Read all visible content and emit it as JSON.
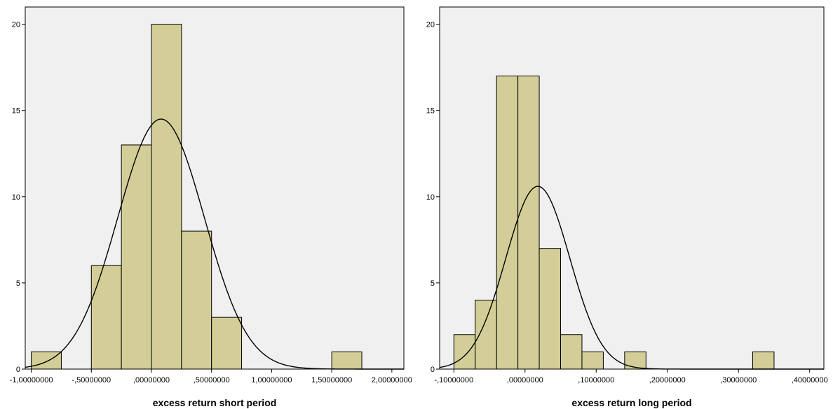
{
  "colors": {
    "plot_background": "#f0f0f0",
    "bar_fill": "#d3ce97",
    "bar_stroke": "#000000",
    "curve": "#000000",
    "axis": "#000000"
  },
  "chart_data": [
    {
      "type": "bar",
      "subtype": "histogram with normal curve",
      "title": "",
      "xlabel": "excess return short period",
      "ylabel": "",
      "grid": false,
      "xlim": [
        -1.05,
        2.1
      ],
      "ylim": [
        0,
        21
      ],
      "x_ticks": [
        {
          "value": -1.0,
          "label": "-1,00000000"
        },
        {
          "value": -0.5,
          "label": "-,50000000"
        },
        {
          "value": 0.0,
          "label": ",00000000"
        },
        {
          "value": 0.5,
          "label": ",50000000"
        },
        {
          "value": 1.0,
          "label": "1,00000000"
        },
        {
          "value": 1.5,
          "label": "1,50000000"
        },
        {
          "value": 2.0,
          "label": "2,00000000"
        }
      ],
      "y_ticks": [
        {
          "value": 0,
          "label": "0"
        },
        {
          "value": 5,
          "label": "5"
        },
        {
          "value": 10,
          "label": "10"
        },
        {
          "value": 15,
          "label": "15"
        },
        {
          "value": 20,
          "label": "20"
        }
      ],
      "bins": [
        {
          "start": -1.0,
          "end": -0.75,
          "count": 1
        },
        {
          "start": -0.5,
          "end": -0.25,
          "count": 6
        },
        {
          "start": -0.25,
          "end": 0.0,
          "count": 13
        },
        {
          "start": 0.0,
          "end": 0.25,
          "count": 20
        },
        {
          "start": 0.25,
          "end": 0.5,
          "count": 8
        },
        {
          "start": 0.5,
          "end": 0.75,
          "count": 3
        },
        {
          "start": 1.5,
          "end": 1.75,
          "count": 1
        }
      ],
      "normal_curve": {
        "mean": 0.08,
        "std": 0.36,
        "peak": 14.5
      }
    },
    {
      "type": "bar",
      "subtype": "histogram with normal curve",
      "title": "",
      "xlabel": "excess return long period",
      "ylabel": "",
      "grid": false,
      "xlim": [
        -0.12,
        0.42
      ],
      "ylim": [
        0,
        21
      ],
      "x_ticks": [
        {
          "value": -0.1,
          "label": "-,10000000"
        },
        {
          "value": 0.0,
          "label": ",00000000"
        },
        {
          "value": 0.1,
          "label": ",10000000"
        },
        {
          "value": 0.2,
          "label": ",20000000"
        },
        {
          "value": 0.3,
          "label": ",30000000"
        },
        {
          "value": 0.4,
          "label": ",40000000"
        }
      ],
      "y_ticks": [
        {
          "value": 0,
          "label": "0"
        },
        {
          "value": 5,
          "label": "5"
        },
        {
          "value": 10,
          "label": "10"
        },
        {
          "value": 15,
          "label": "15"
        },
        {
          "value": 20,
          "label": "20"
        }
      ],
      "bins": [
        {
          "start": -0.1,
          "end": -0.07,
          "count": 2
        },
        {
          "start": -0.07,
          "end": -0.04,
          "count": 4
        },
        {
          "start": -0.04,
          "end": -0.01,
          "count": 17
        },
        {
          "start": -0.01,
          "end": 0.02,
          "count": 17
        },
        {
          "start": 0.02,
          "end": 0.05,
          "count": 7
        },
        {
          "start": 0.05,
          "end": 0.08,
          "count": 2
        },
        {
          "start": 0.08,
          "end": 0.11,
          "count": 1
        },
        {
          "start": 0.14,
          "end": 0.17,
          "count": 1
        },
        {
          "start": 0.32,
          "end": 0.35,
          "count": 1
        }
      ],
      "normal_curve": {
        "mean": 0.018,
        "std": 0.045,
        "peak": 10.6
      }
    }
  ]
}
